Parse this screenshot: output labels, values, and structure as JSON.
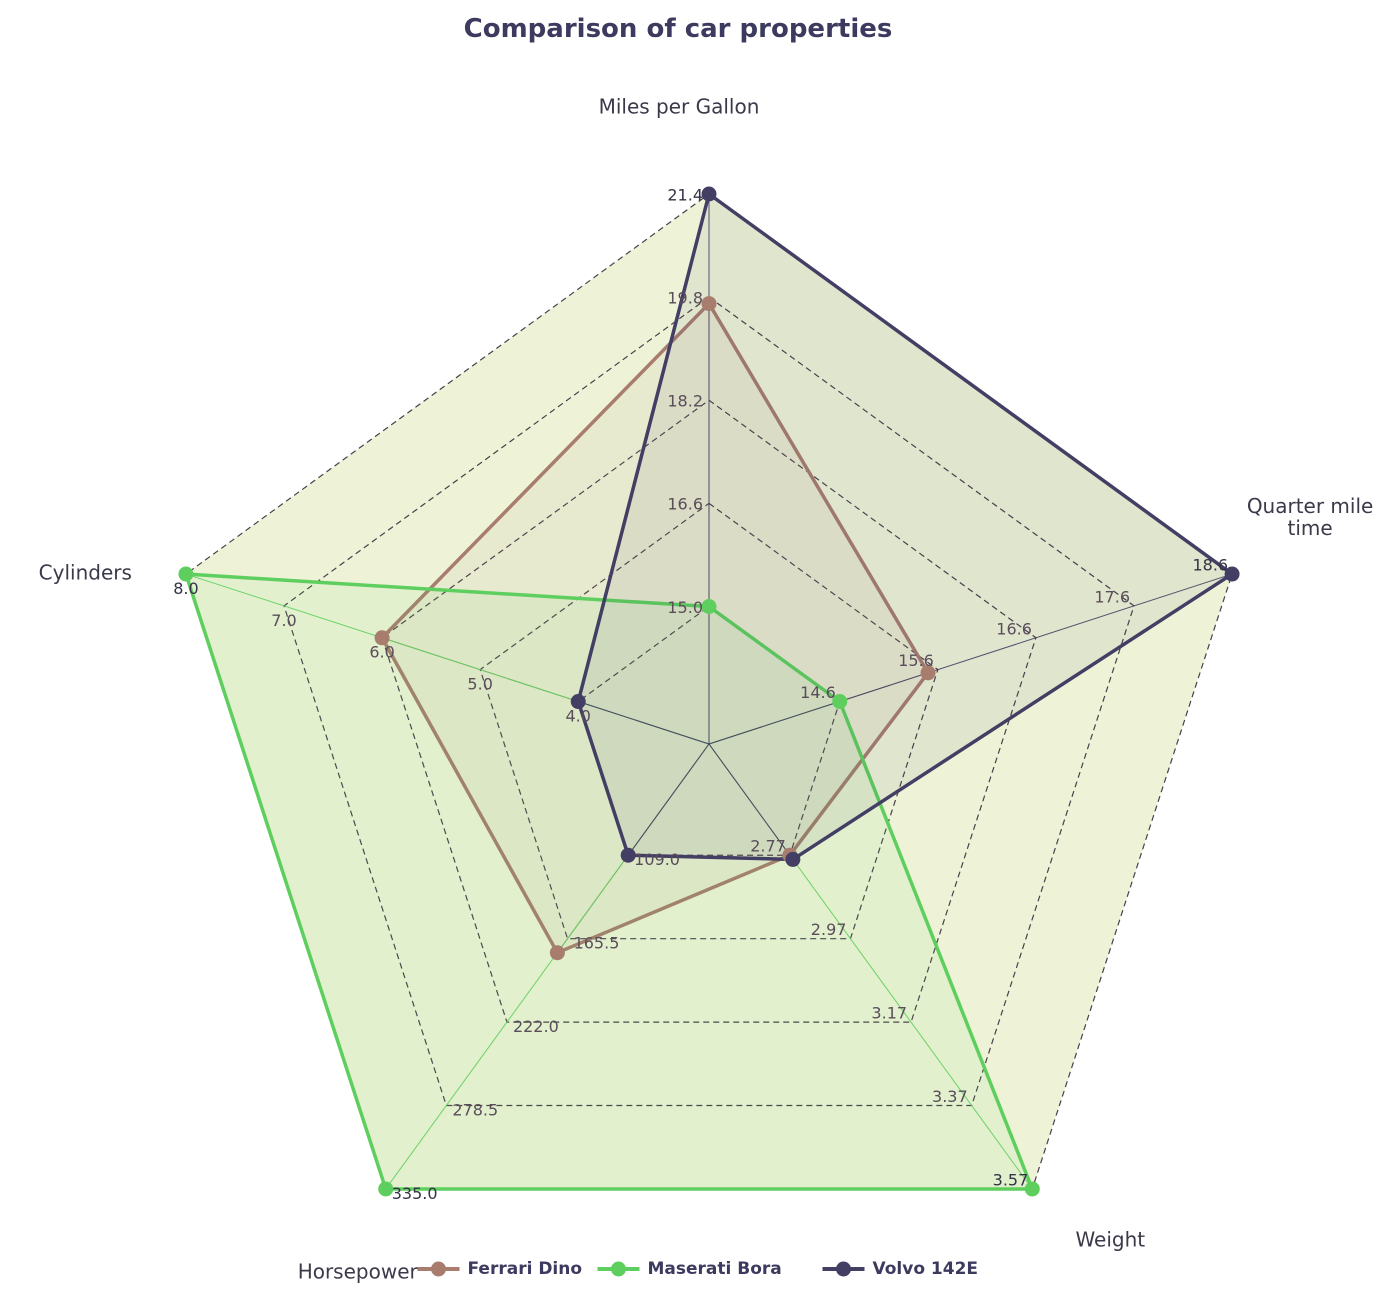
{
  "chart_data": {
    "type": "radar",
    "title": "Comparison of car properties",
    "axes": [
      {
        "label": "Miles per Gallon",
        "ticks": [
          "15.0",
          "16.6",
          "18.2",
          "19.8",
          "21.4"
        ],
        "min": 15.0,
        "max": 21.4
      },
      {
        "label": "Quarter mile time",
        "ticks": [
          "14.6",
          "15.6",
          "16.6",
          "17.6",
          "18.6"
        ],
        "min": 14.6,
        "max": 18.6
      },
      {
        "label": "Weight",
        "ticks": [
          "2.77",
          "2.97",
          "3.17",
          "3.37",
          "3.57"
        ],
        "min": 2.77,
        "max": 3.57
      },
      {
        "label": "Horsepower",
        "ticks": [
          "109.0",
          "165.5",
          "222.0",
          "278.5",
          "335.0"
        ],
        "min": 109.0,
        "max": 335.0
      },
      {
        "label": "Cylinders",
        "ticks": [
          "4.0",
          "5.0",
          "6.0",
          "7.0",
          "8.0"
        ],
        "min": 4.0,
        "max": 8.0
      }
    ],
    "series": [
      {
        "name": "Ferrari Dino",
        "color": "#a87d6e",
        "values": [
          19.7,
          15.5,
          2.77,
          175,
          6
        ]
      },
      {
        "name": "Maserati Bora",
        "color": "#5ecf5e",
        "values": [
          15.0,
          14.6,
          3.57,
          335,
          8
        ]
      },
      {
        "name": "Volvo 142E",
        "color": "#433e64",
        "values": [
          21.4,
          18.6,
          2.78,
          109,
          4
        ]
      }
    ],
    "legend_position": "bottom-center",
    "grid": "dashed"
  },
  "colors": {
    "background_fill": "#eef3d7",
    "grid_line": "#4a3f4a",
    "title": "#3c3b5f"
  }
}
